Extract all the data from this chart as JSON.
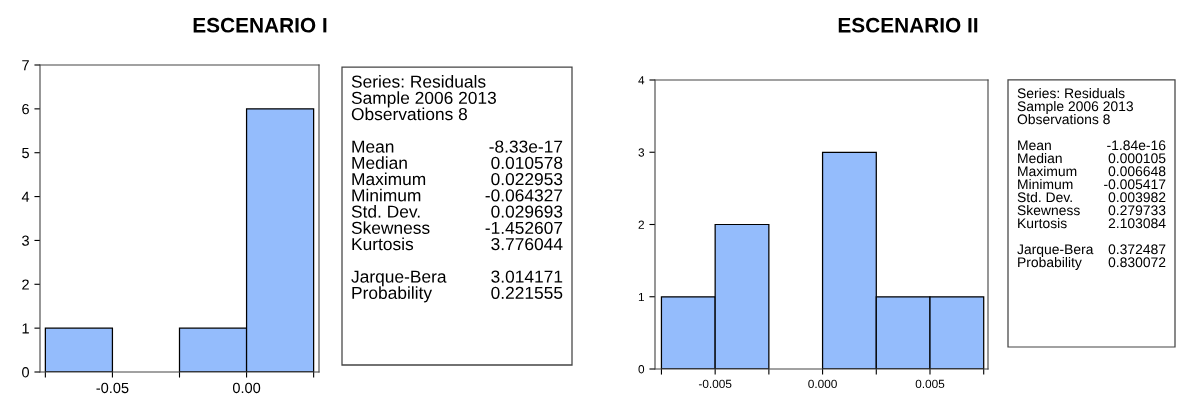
{
  "chart_data": [
    {
      "type": "histogram",
      "title": "ESCENARIO I",
      "bins": [
        -0.075,
        -0.05,
        -0.025,
        0,
        0.025
      ],
      "values": [
        1,
        0,
        1,
        6
      ],
      "color": "#94bcfc",
      "xlim": [
        -0.077,
        0.027
      ],
      "xticks": [
        {
          "value": -0.075,
          "label": null
        },
        -0.05,
        {
          "value": -0.025,
          "label": null
        },
        {
          "value": 0,
          "label": "0.00"
        },
        {
          "value": 0.025,
          "label": null
        }
      ],
      "ylim": [
        0,
        7
      ],
      "yticks": [
        0,
        1,
        2,
        3,
        4,
        5,
        6,
        7
      ],
      "grid": false,
      "annotations": [
        "Series: Residuals",
        "Sample 2006 2013",
        "Observations 8",
        "Mean\t-8.33e-17",
        "Median\t0.010578",
        "Maximum\t0.022953",
        "Minimum\t-0.064327",
        "Std. Dev.\t0.029693",
        "Skewness\t-1.452607",
        "Kurtosis\t3.776044",
        "Jarque-Bera\t3.014171",
        "Probability\t0.221555"
      ]
    },
    {
      "type": "histogram",
      "title": "ESCENARIO II",
      "bins": [
        -0.0075,
        -0.005,
        -0.0025,
        0,
        0.0025,
        0.005,
        0.0075
      ],
      "values": [
        1,
        2,
        0,
        3,
        1,
        1
      ],
      "color": "#94bcfc",
      "xlim": [
        -0.0078,
        0.0077
      ],
      "xticks": [
        {
          "value": -0.0075,
          "label": null
        },
        -0.005,
        {
          "value": -0.0025,
          "label": null
        },
        {
          "value": 0,
          "label": "0.000"
        },
        {
          "value": 0.0025,
          "label": null
        },
        0.005,
        {
          "value": 0.0075,
          "label": null
        }
      ],
      "ylim": [
        0,
        4
      ],
      "yticks": [
        0,
        1,
        2,
        3,
        4
      ],
      "grid": false,
      "annotations": [
        "Series: Residuals",
        "Sample 2006 2013",
        "Observations 8",
        "Mean\t-1.84e-16",
        "Median\t0.000105",
        "Maximum\t0.006648",
        "Minimum\t-0.005417",
        "Std. Dev.\t0.003982",
        "Skewness\t0.279733",
        "Kurtosis\t2.103084",
        "Jarque-Bera\t0.372487",
        "Probability\t0.830072"
      ]
    }
  ]
}
